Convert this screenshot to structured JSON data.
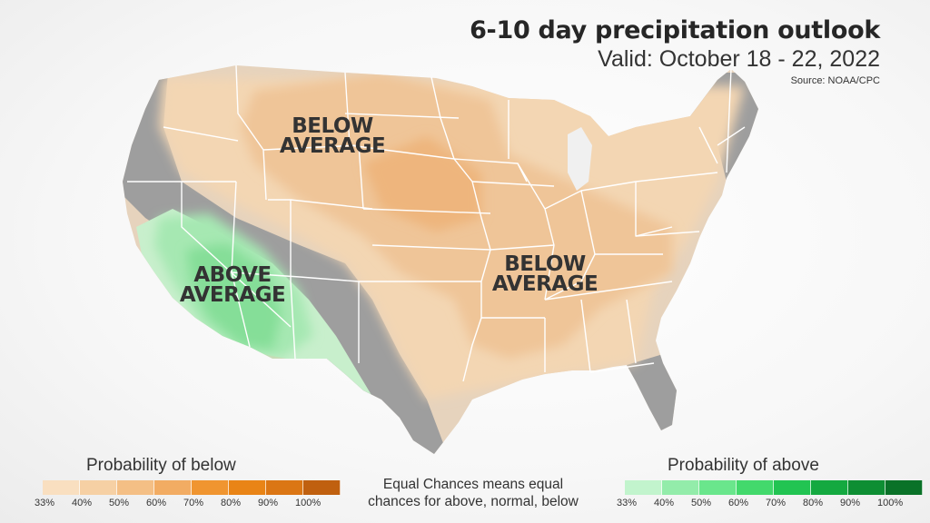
{
  "header": {
    "title": "6-10 day precipitation outlook",
    "subtitle": "Valid: October 18 - 22, 2022",
    "source": "Source: NOAA/CPC"
  },
  "map_labels": {
    "below_north": [
      "BELOW",
      "AVERAGE"
    ],
    "below_east": [
      "BELOW",
      "AVERAGE"
    ],
    "above_southwest": [
      "ABOVE",
      "AVERAGE"
    ]
  },
  "legend_below": {
    "title": "Probability of below",
    "ticks": [
      "33%",
      "40%",
      "50%",
      "60%",
      "70%",
      "80%",
      "90%",
      "100%"
    ],
    "colors": [
      "#f9dfc0",
      "#f6d0a4",
      "#f4bf85",
      "#f2ac63",
      "#f09530",
      "#e98416",
      "#db7614",
      "#c0600f"
    ]
  },
  "legend_above": {
    "title": "Probability of above",
    "ticks": [
      "33%",
      "40%",
      "50%",
      "60%",
      "70%",
      "80%",
      "90%",
      "100%"
    ],
    "colors": [
      "#c2f4cd",
      "#93ecaa",
      "#6ae68c",
      "#43d96c",
      "#22c452",
      "#14a940",
      "#0e8e33",
      "#0a7228"
    ]
  },
  "equal_chances_note": [
    "Equal Chances means equal",
    "chances for above, normal, below"
  ],
  "colors": {
    "equal_chances": "#9e9e9e",
    "state_borders": "#ffffff",
    "label_text": "#333333"
  }
}
